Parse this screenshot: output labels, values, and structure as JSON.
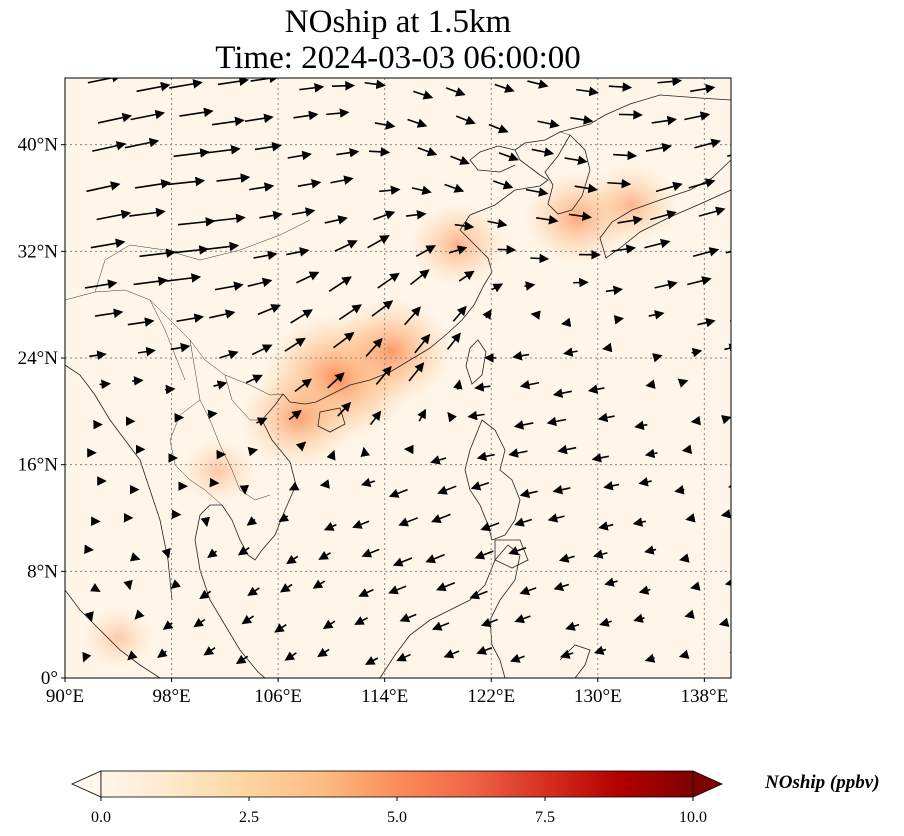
{
  "title": {
    "line1": "NOship at 1.5km",
    "line2": "Time: 2024-03-03 06:00:00"
  },
  "map": {
    "projection": "PlateCarree",
    "lon_range": [
      90,
      140
    ],
    "lat_range": [
      0,
      45
    ],
    "gridlines": "dotted gray",
    "x_tick_labels": [
      "90°E",
      "98°E",
      "106°E",
      "114°E",
      "122°E",
      "130°E",
      "138°E"
    ],
    "x_tick_values": [
      90,
      98,
      106,
      114,
      122,
      130,
      138
    ],
    "y_tick_labels": [
      "0°",
      "8°N",
      "16°N",
      "24°N",
      "32°N",
      "40°N"
    ],
    "y_tick_values": [
      0,
      8,
      16,
      24,
      32,
      40
    ],
    "overlay": "wind vectors (arrows)"
  },
  "chart_data": {
    "type": "heatmap",
    "variable": "NOship",
    "units": "ppbv",
    "colormap": "OrRd",
    "vmin": 0.0,
    "vmax": 10.0,
    "hotspots": [
      {
        "lon": 110.5,
        "lat": 22.5,
        "value": 2.8
      },
      {
        "lon": 114.5,
        "lat": 24.5,
        "value": 2.0
      },
      {
        "lon": 107.5,
        "lat": 19.5,
        "value": 1.8
      },
      {
        "lon": 119.5,
        "lat": 32.5,
        "value": 1.3
      },
      {
        "lon": 128.5,
        "lat": 34.5,
        "value": 1.6
      },
      {
        "lon": 132.5,
        "lat": 35.5,
        "value": 1.2
      },
      {
        "lon": 101.5,
        "lat": 15.5,
        "value": 0.7
      },
      {
        "lon": 94.0,
        "lat": 3.0,
        "value": 0.6
      }
    ],
    "wind_samples": [
      {
        "lon": 92,
        "lat": 38,
        "u": 9,
        "v": 2
      },
      {
        "lon": 98,
        "lat": 35,
        "u": 10,
        "v": 1
      },
      {
        "lon": 106,
        "lat": 34,
        "u": 6,
        "v": 1
      },
      {
        "lon": 111,
        "lat": 28,
        "u": 6,
        "v": 4
      },
      {
        "lon": 115,
        "lat": 24,
        "u": 4,
        "v": 5
      },
      {
        "lon": 120,
        "lat": 40,
        "u": 5,
        "v": -2
      },
      {
        "lon": 128,
        "lat": 38,
        "u": 6,
        "v": -1
      },
      {
        "lon": 135,
        "lat": 36,
        "u": 7,
        "v": 2
      },
      {
        "lon": 125,
        "lat": 20,
        "u": -5,
        "v": -1
      },
      {
        "lon": 118,
        "lat": 12,
        "u": -5,
        "v": -2
      },
      {
        "lon": 105,
        "lat": 6,
        "u": -3,
        "v": -2
      },
      {
        "lon": 96,
        "lat": 16,
        "u": 2,
        "v": 0
      }
    ]
  },
  "colorbar": {
    "label": "NOship (ppbv)",
    "tick_labels": [
      "0.0",
      "2.5",
      "5.0",
      "7.5",
      "10.0"
    ],
    "tick_values": [
      0.0,
      2.5,
      5.0,
      7.5,
      10.0
    ],
    "extend": "both",
    "colors": [
      "#fff7ec",
      "#fee8c8",
      "#fdd49e",
      "#fdbb84",
      "#fc8d59",
      "#ef6548",
      "#d7301f",
      "#b30000",
      "#7f0000"
    ]
  }
}
